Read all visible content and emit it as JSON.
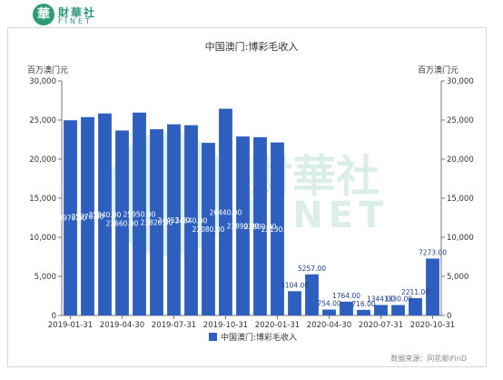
{
  "brand": {
    "mark": "華",
    "name_cn": "財華社",
    "name_en": "FINET",
    "watermark_cn": "財華社",
    "watermark_en": "FINET",
    "color": "#2e9b78"
  },
  "source": "数据来源：同花顺iFinD",
  "chart_data": {
    "type": "bar",
    "title": "中国澳门:博彩毛收入",
    "y_unit_left": "百万澳门元",
    "y_unit_right": "百万澳门元",
    "ylim": [
      0,
      30000
    ],
    "yticks": [
      "0",
      "5,000",
      "10,000",
      "15,000",
      "20,000",
      "25,000",
      "30,000"
    ],
    "xticks": [
      "2019-01-31",
      "2019-04-30",
      "2019-07-31",
      "2019-10-31",
      "2020-01-31",
      "2020-04-30",
      "2020-07-31",
      "2020-10-31"
    ],
    "categories": [
      "2019-01-31",
      "2019-02-28",
      "2019-03-31",
      "2019-04-30",
      "2019-05-31",
      "2019-06-30",
      "2019-07-31",
      "2019-08-31",
      "2019-09-30",
      "2019-10-31",
      "2019-11-30",
      "2019-12-31",
      "2020-01-31",
      "2020-02-29",
      "2020-03-31",
      "2020-04-30",
      "2020-05-31",
      "2020-06-30",
      "2020-07-31",
      "2020-08-31",
      "2020-09-30",
      "2020-10-31"
    ],
    "series": [
      {
        "name": "中国澳门:博彩毛收入",
        "color": "#2f5fbe",
        "values": [
          24970,
          25370,
          25840,
          23660,
          25950,
          23820,
          24453,
          24340,
          22080,
          26440,
          22890,
          22800,
          22130,
          3104,
          5257,
          754,
          1764,
          716,
          1344,
          1330,
          2211,
          7273
        ],
        "labels": [
          "24970.00",
          "25370.00",
          "25840.00",
          "23660.00",
          "25950.00",
          "23820.00",
          "24453.00",
          "24340.00",
          "22080.00",
          "26440.00",
          "22890.00",
          "22800.00",
          "22130.00",
          "3104.00",
          "5257.00",
          "754.00",
          "1764.00",
          "716.00",
          "1344.00",
          "1330.00",
          "2211.00",
          "7273.00"
        ]
      }
    ],
    "legend": "bottom-center",
    "grid": false
  }
}
